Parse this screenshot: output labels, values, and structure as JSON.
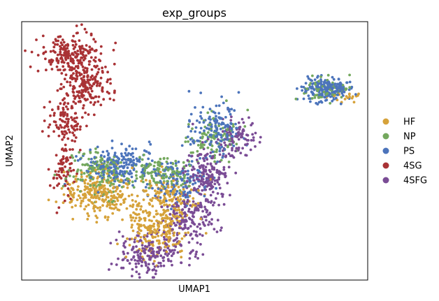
{
  "title": "exp_groups",
  "chart_data": {
    "type": "scatter",
    "title": "exp_groups",
    "xlabel": "UMAP1",
    "ylabel": "UMAP2",
    "xlim": [
      0,
      100
    ],
    "ylim": [
      0,
      100
    ],
    "ticks": "none",
    "grid": false,
    "legend": {
      "placement": "right",
      "entries": [
        "HF",
        "NP",
        "PS",
        "4SG",
        "4SFG"
      ]
    },
    "series": [
      {
        "name": "HF",
        "color": "#D6A23A",
        "regions": [
          {
            "center": [
              23,
              34
            ],
            "spread": [
              7,
              6
            ],
            "count": 260
          },
          {
            "center": [
              39,
              20
            ],
            "spread": [
              6,
              7
            ],
            "count": 240
          },
          {
            "center": [
              43,
              33
            ],
            "spread": [
              5,
              5
            ],
            "count": 120
          },
          {
            "center": [
              93,
              71
            ],
            "spread": [
              3,
              2
            ],
            "count": 20
          }
        ]
      },
      {
        "name": "NP",
        "color": "#74A85E",
        "regions": [
          {
            "center": [
              22,
              42
            ],
            "spread": [
              6,
              6
            ],
            "count": 150
          },
          {
            "center": [
              40,
              42
            ],
            "spread": [
              7,
              4
            ],
            "count": 130
          },
          {
            "center": [
              56,
              55
            ],
            "spread": [
              5,
              6
            ],
            "count": 100
          },
          {
            "center": [
              88,
              74
            ],
            "spread": [
              5,
              3
            ],
            "count": 60
          }
        ]
      },
      {
        "name": "PS",
        "color": "#4C74BB",
        "regions": [
          {
            "center": [
              28,
              44
            ],
            "spread": [
              7,
              5
            ],
            "count": 210
          },
          {
            "center": [
              45,
              38
            ],
            "spread": [
              6,
              5
            ],
            "count": 130
          },
          {
            "center": [
              56,
              58
            ],
            "spread": [
              5,
              7
            ],
            "count": 150
          },
          {
            "center": [
              88,
              74
            ],
            "spread": [
              5,
              3
            ],
            "count": 210
          }
        ]
      },
      {
        "name": "4SG",
        "color": "#A93235",
        "regions": [
          {
            "center": [
              14,
              87
            ],
            "spread": [
              6,
              5
            ],
            "count": 210
          },
          {
            "center": [
              19,
              75
            ],
            "spread": [
              5,
              6
            ],
            "count": 160
          },
          {
            "center": [
              13,
              62
            ],
            "spread": [
              3,
              7
            ],
            "count": 110
          },
          {
            "center": [
              12,
              42
            ],
            "spread": [
              2,
              7
            ],
            "count": 70
          }
        ]
      },
      {
        "name": "4SFG",
        "color": "#7A4C95",
        "regions": [
          {
            "center": [
              37,
              10
            ],
            "spread": [
              6,
              5
            ],
            "count": 180
          },
          {
            "center": [
              48,
              23
            ],
            "spread": [
              5,
              7
            ],
            "count": 170
          },
          {
            "center": [
              54,
              40
            ],
            "spread": [
              4,
              8
            ],
            "count": 180
          },
          {
            "center": [
              62,
              55
            ],
            "spread": [
              4,
              5
            ],
            "count": 100
          }
        ]
      }
    ]
  }
}
